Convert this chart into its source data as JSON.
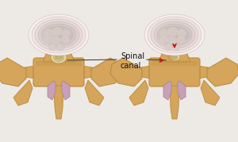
{
  "bg_color": "#edeae5",
  "border_color": "#b0a898",
  "disc_colors": [
    "#f7eeed",
    "#f0e4e3",
    "#e8dada",
    "#ddd0ce",
    "#d4c6c4",
    "#cbbfbc",
    "#c4b8b5"
  ],
  "disc_white_color": "#e8e0dc",
  "brain_color": "#d8cdc8",
  "brain_detail": "#c8bdb8",
  "bone_color": "#d4a55a",
  "bone_edge": "#b88840",
  "bone_dark": "#c49848",
  "canal_fill": "#e8d8a8",
  "cord_color": "#d8c890",
  "cord_edge": "#b8a870",
  "cord_inner": "#c8b878",
  "ligament_color": "#c8a0b8",
  "ligament_edge": "#a08098",
  "arrow_color": "#cc1111",
  "label_color": "#111111",
  "label_fontsize": 7.0,
  "figsize": [
    3.0,
    1.79
  ],
  "dpi": 100
}
